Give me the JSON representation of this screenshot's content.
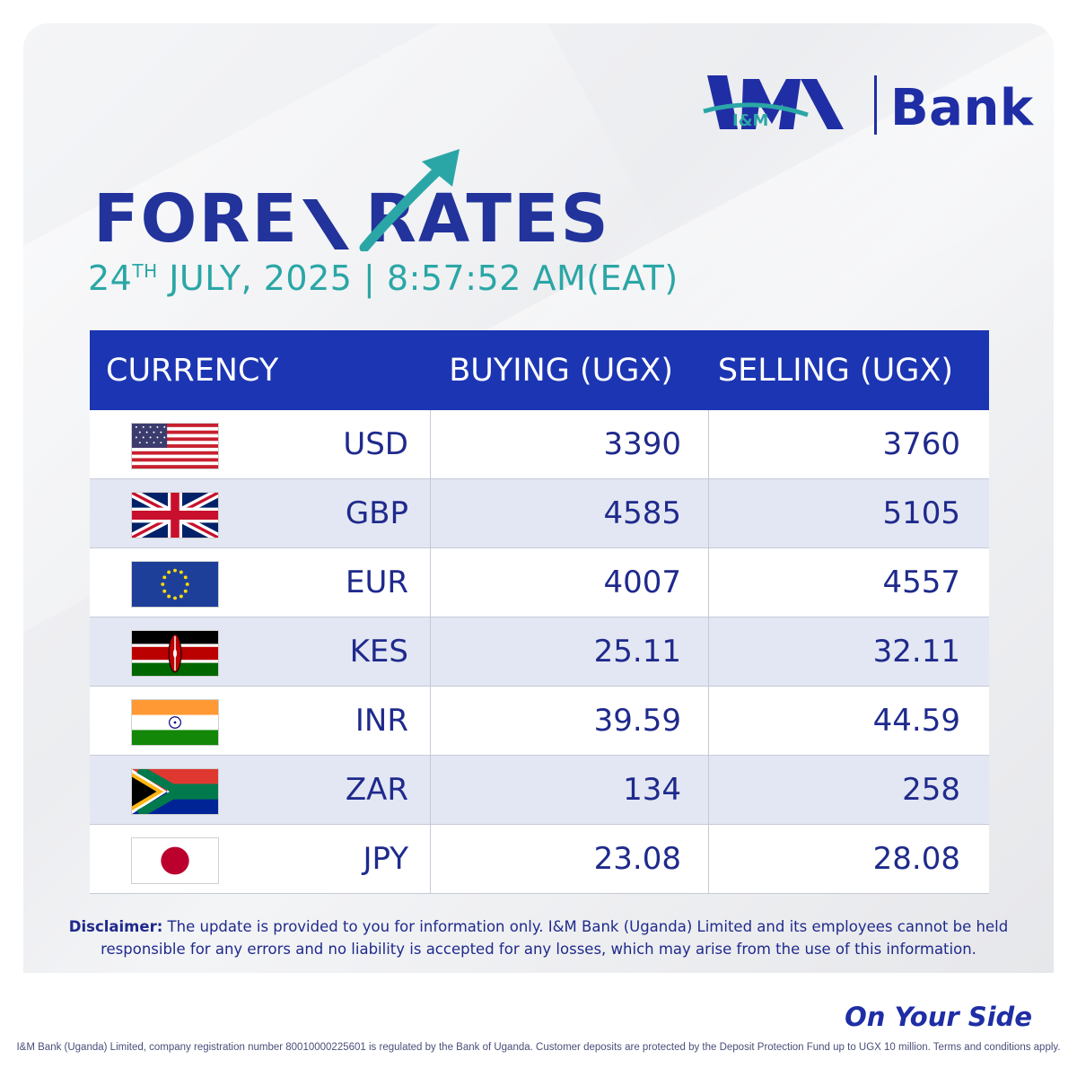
{
  "brand": {
    "logo_mark": "I&M",
    "logo_text": "Bank",
    "tagline": "On Your Side",
    "primary_color": "#1f2ea5",
    "accent_color": "#2ba6a6"
  },
  "title": {
    "part1": "FORE",
    "part2": "X",
    "part3": "RATES"
  },
  "datetime": {
    "day": "24",
    "day_suffix": "TH",
    "rest": " JULY, 2025 | 8:57:52 AM(EAT)"
  },
  "table": {
    "headers": {
      "currency": "CURRENCY",
      "buying": "BUYING (UGX)",
      "selling": "SELLING (UGX)"
    },
    "rows": [
      {
        "flag": "usa-flag-icon",
        "code": "USD",
        "buying": "3390",
        "selling": "3760"
      },
      {
        "flag": "uk-flag-icon",
        "code": "GBP",
        "buying": "4585",
        "selling": "5105"
      },
      {
        "flag": "eu-flag-icon",
        "code": "EUR",
        "buying": "4007",
        "selling": "4557"
      },
      {
        "flag": "kenya-flag-icon",
        "code": "KES",
        "buying": "25.11",
        "selling": "32.11"
      },
      {
        "flag": "india-flag-icon",
        "code": "INR",
        "buying": "39.59",
        "selling": "44.59"
      },
      {
        "flag": "south-africa-flag-icon",
        "code": "ZAR",
        "buying": "134",
        "selling": "258"
      },
      {
        "flag": "japan-flag-icon",
        "code": "JPY",
        "buying": "23.08",
        "selling": "28.08"
      }
    ]
  },
  "disclaimer": {
    "label": "Disclaimer:",
    "text": " The update is provided to you for information only. I&M Bank (Uganda) Limited and its employees cannot be held responsible for any errors and no liability is accepted for any losses, which may arise from the use of this information."
  },
  "footer": "I&M Bank (Uganda) Limited, company registration number 80010000225601 is regulated by the Bank of Uganda. Customer deposits are protected by the Deposit Protection Fund up to UGX 10 million. Terms and conditions apply."
}
